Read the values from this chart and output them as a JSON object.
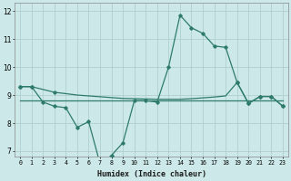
{
  "xlabel": "Humidex (Indice chaleur)",
  "x": [
    0,
    1,
    2,
    3,
    4,
    5,
    6,
    7,
    8,
    9,
    10,
    11,
    12,
    13,
    14,
    15,
    16,
    17,
    18,
    19,
    20,
    21,
    22,
    23
  ],
  "line_main": [
    9.3,
    9.3,
    8.75,
    8.6,
    8.55,
    7.85,
    8.05,
    6.55,
    6.85,
    7.3,
    8.8,
    8.8,
    8.75,
    10.0,
    11.85,
    11.4,
    11.2,
    10.75,
    10.7,
    9.45,
    8.7,
    8.95,
    8.95,
    8.6
  ],
  "line_flat": [
    8.8,
    8.8,
    8.8,
    8.8,
    8.8,
    8.8,
    8.8,
    8.8,
    8.8,
    8.8,
    8.8,
    8.8,
    8.8,
    8.8,
    8.8,
    8.8,
    8.8,
    8.8,
    8.8,
    8.8,
    8.8,
    8.8,
    8.8,
    8.8
  ],
  "line_top": [
    9.3,
    9.3,
    9.2,
    9.1,
    9.05,
    9.0,
    8.97,
    8.94,
    8.91,
    8.88,
    8.87,
    8.86,
    8.85,
    8.85,
    8.85,
    8.87,
    8.9,
    8.93,
    8.97,
    9.45,
    8.7,
    8.95,
    8.95,
    8.6
  ],
  "color": "#2e7b6e",
  "bg_color": "#cce8e8",
  "grid_color": "#aacaca",
  "ylim": [
    6.8,
    12.3
  ],
  "yticks": [
    7,
    8,
    9,
    10,
    11,
    12
  ],
  "xlim": [
    -0.5,
    23.5
  ]
}
